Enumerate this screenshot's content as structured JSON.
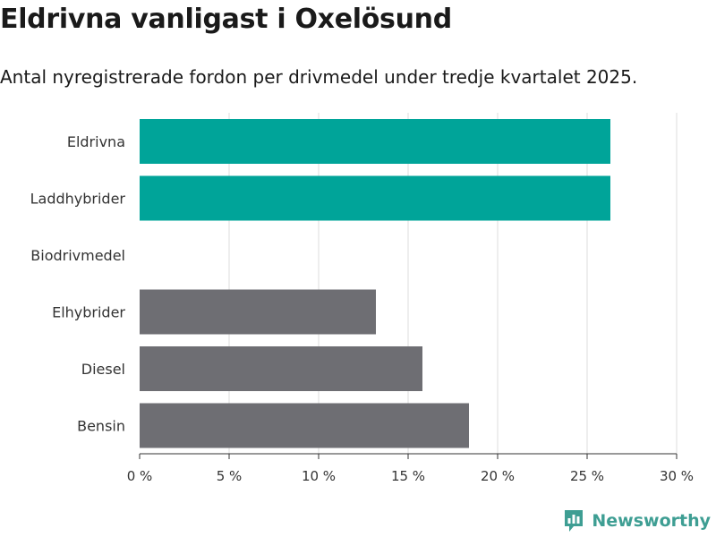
{
  "chart_data": {
    "type": "bar",
    "orientation": "horizontal",
    "title": "Eldrivna vanligast i Oxelösund",
    "subtitle": "Antal nyregistrerade fordon per drivmedel under tredje kvartalet 2025.",
    "categories": [
      "Eldrivna",
      "Laddhybrider",
      "Biodrivmedel",
      "Elhybrider",
      "Diesel",
      "Bensin"
    ],
    "values": [
      26.3,
      26.3,
      0,
      13.2,
      15.8,
      18.4
    ],
    "highlight": [
      true,
      true,
      false,
      false,
      false,
      false
    ],
    "colors": {
      "highlight": "#00a499",
      "default": "#6e6e73",
      "grid": "#dddddd",
      "axis": "#333333"
    },
    "xlim": [
      0,
      30
    ],
    "xticks": [
      0,
      5,
      10,
      15,
      20,
      25,
      30
    ],
    "xtick_labels": [
      "0 %",
      "5 %",
      "10 %",
      "15 %",
      "20 %",
      "25 %",
      "30 %"
    ],
    "xlabel": "",
    "ylabel": "",
    "grid": true
  },
  "branding": {
    "name": "Newsworthy",
    "icon": "newsworthy-logo-icon",
    "color": "#3e9e93"
  }
}
